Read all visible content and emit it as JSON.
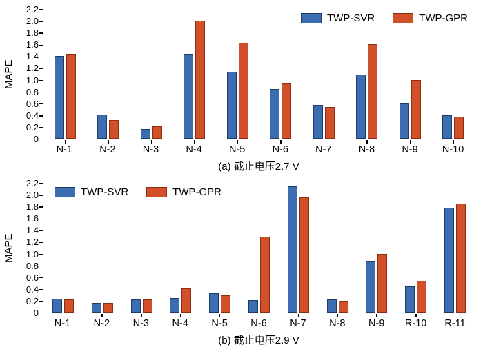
{
  "figure": {
    "ylabel": "MAPE"
  },
  "chart_data": [
    {
      "type": "bar",
      "title": "(a) 截止电压2.7 V",
      "xlabel": "",
      "ylabel": "MAPE",
      "ylim": [
        0,
        2.2
      ],
      "yticks": [
        0,
        0.2,
        0.4,
        0.6,
        0.8,
        1.0,
        1.2,
        1.4,
        1.6,
        1.8,
        2.0,
        2.2
      ],
      "grid": false,
      "legend_position": "top-right",
      "categories": [
        "N-1",
        "N-2",
        "N-3",
        "N-4",
        "N-5",
        "N-6",
        "N-7",
        "N-8",
        "N-9",
        "N-10"
      ],
      "series": [
        {
          "name": "TWP-SVR",
          "color": "#3c6db0",
          "edge": "#1c3c63",
          "values": [
            1.42,
            0.41,
            0.17,
            1.46,
            1.15,
            0.85,
            0.58,
            1.1,
            0.6,
            0.4
          ]
        },
        {
          "name": "TWP-GPR",
          "color": "#d1502a",
          "edge": "#8a2f14",
          "values": [
            1.46,
            0.32,
            0.21,
            2.02,
            1.65,
            0.95,
            0.54,
            1.62,
            1.0,
            0.38
          ]
        }
      ]
    },
    {
      "type": "bar",
      "title": "(b) 截止电压2.9 V",
      "xlabel": "",
      "ylabel": "MAPE",
      "ylim": [
        0,
        2.2
      ],
      "yticks": [
        0,
        0.2,
        0.4,
        0.6,
        0.8,
        1.0,
        1.2,
        1.4,
        1.6,
        1.8,
        2.0,
        2.2
      ],
      "grid": false,
      "legend_position": "top-left",
      "categories": [
        "N-1",
        "N-2",
        "N-3",
        "N-4",
        "N-5",
        "N-6",
        "N-7",
        "N-8",
        "N-9",
        "R-10",
        "R-11"
      ],
      "series": [
        {
          "name": "TWP-SVR",
          "color": "#3c6db0",
          "edge": "#1c3c63",
          "values": [
            0.24,
            0.17,
            0.23,
            0.25,
            0.33,
            0.21,
            2.17,
            0.22,
            0.88,
            0.45,
            1.8
          ]
        },
        {
          "name": "TWP-GPR",
          "color": "#d1502a",
          "edge": "#8a2f14",
          "values": [
            0.23,
            0.16,
            0.23,
            0.42,
            0.3,
            1.3,
            1.98,
            0.19,
            1.0,
            0.55,
            1.87
          ]
        }
      ]
    }
  ]
}
